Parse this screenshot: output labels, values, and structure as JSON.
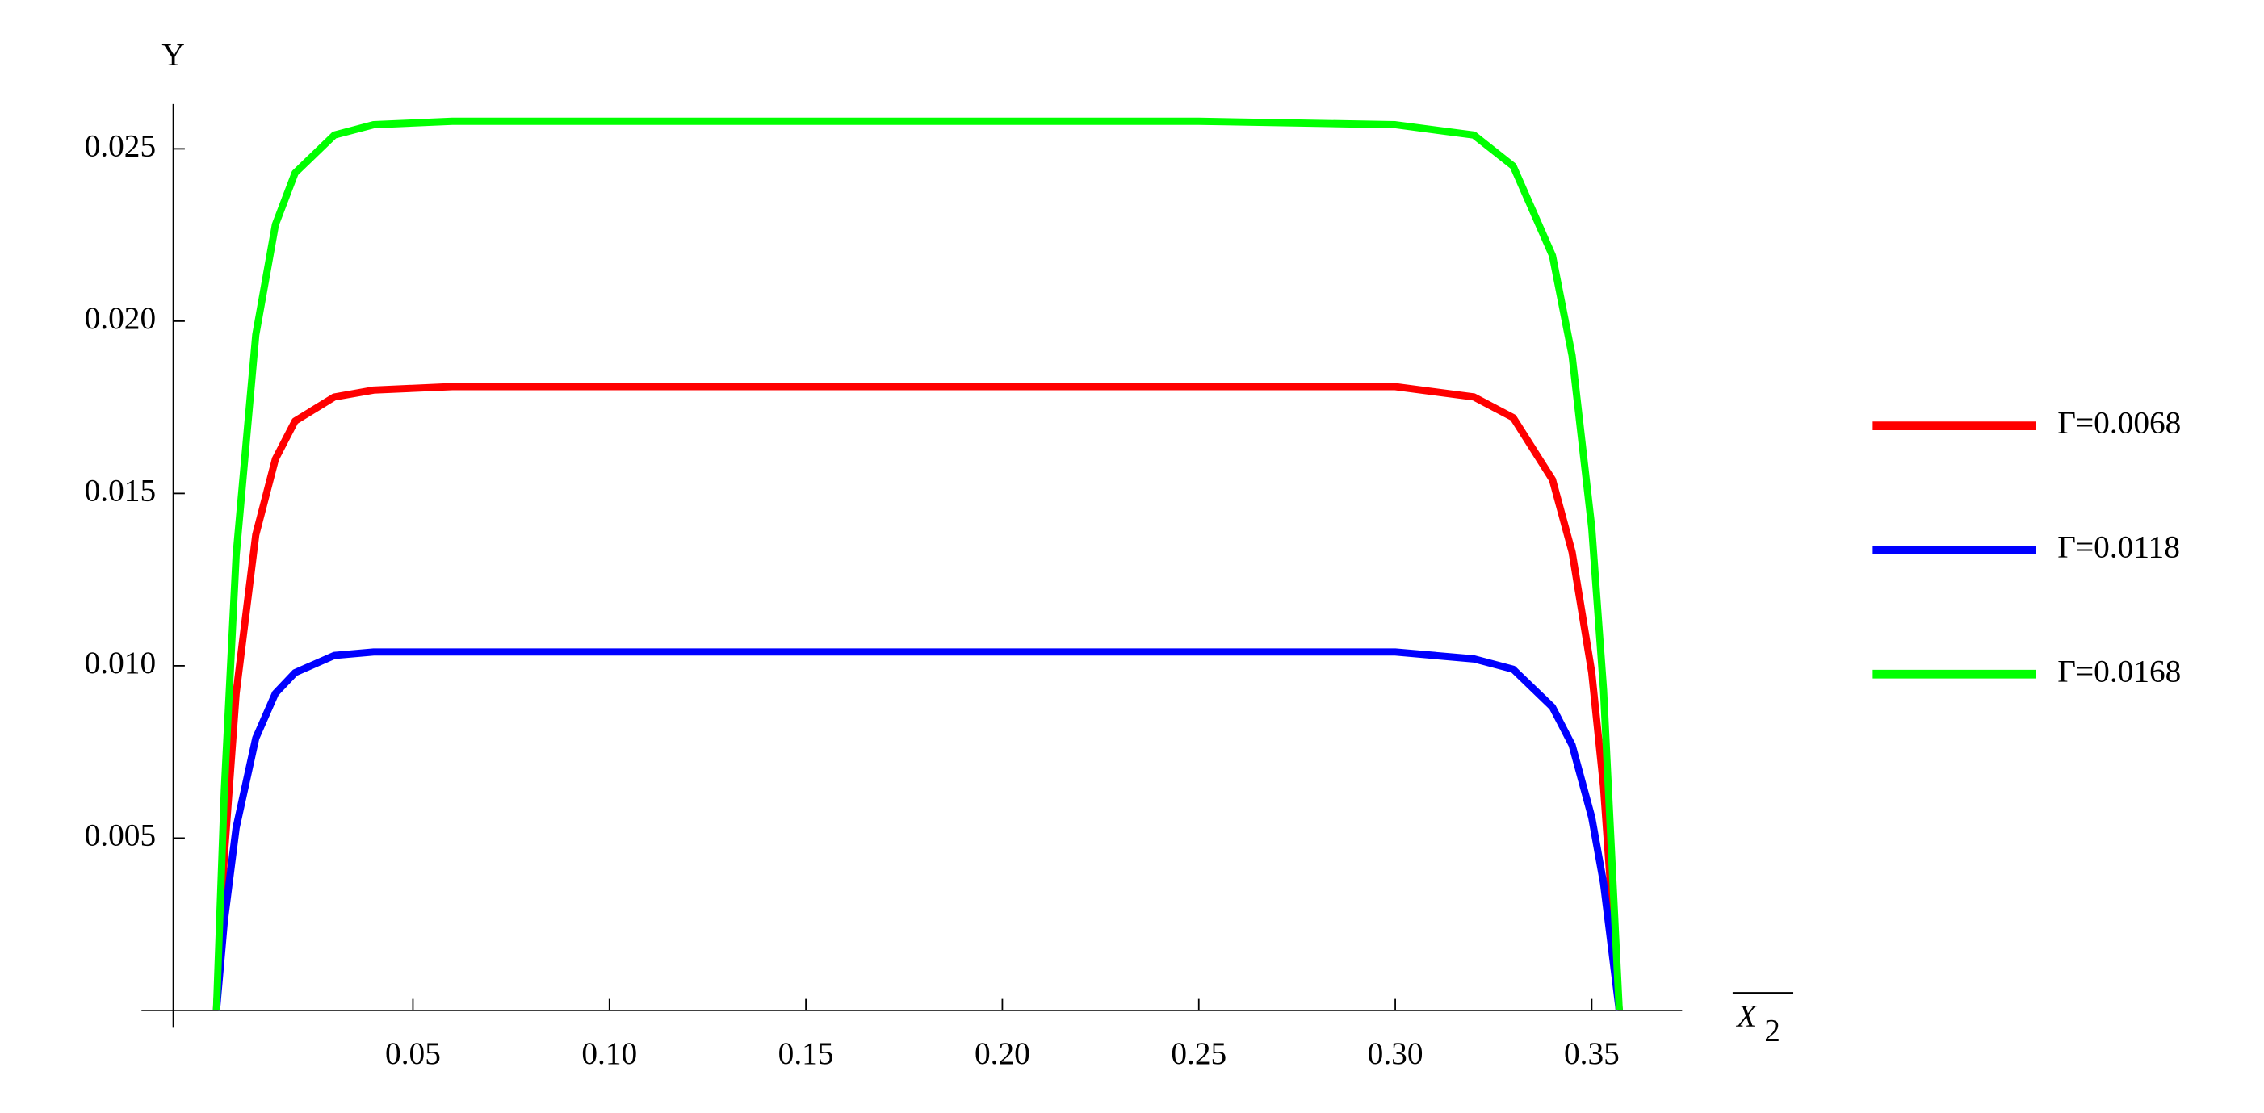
{
  "chart_data": {
    "type": "line",
    "ylabel": "Υ",
    "xlabel": "X",
    "xlabel_subscript": "2",
    "x": [
      0,
      0.002,
      0.005,
      0.01,
      0.015,
      0.02,
      0.03,
      0.04,
      0.06,
      0.1,
      0.15,
      0.2,
      0.25,
      0.3,
      0.32,
      0.33,
      0.34,
      0.345,
      0.35,
      0.353,
      0.357
    ],
    "series": [
      {
        "name": "Γ=0.0068",
        "color": "#ff0000",
        "values": [
          0,
          0.0045,
          0.0092,
          0.0138,
          0.016,
          0.0171,
          0.0178,
          0.018,
          0.0181,
          0.0181,
          0.0181,
          0.0181,
          0.0181,
          0.0181,
          0.0178,
          0.0172,
          0.0154,
          0.0133,
          0.0098,
          0.0065,
          0
        ]
      },
      {
        "name": "Γ=0.0118",
        "color": "#0000ff",
        "values": [
          0,
          0.0026,
          0.0053,
          0.0079,
          0.0092,
          0.0098,
          0.0103,
          0.0104,
          0.0104,
          0.0104,
          0.0104,
          0.0104,
          0.0104,
          0.0104,
          0.0102,
          0.0099,
          0.0088,
          0.0077,
          0.0056,
          0.0037,
          0
        ]
      },
      {
        "name": "Γ=0.0168",
        "color": "#00ff00",
        "values": [
          0,
          0.0064,
          0.0132,
          0.0196,
          0.0228,
          0.0243,
          0.0254,
          0.0257,
          0.0258,
          0.0258,
          0.0258,
          0.0258,
          0.0258,
          0.0257,
          0.0254,
          0.0245,
          0.0219,
          0.019,
          0.014,
          0.0093,
          0
        ]
      }
    ],
    "xlim": [
      -0.011,
      0.373
    ],
    "ylim": [
      0,
      0.0263
    ],
    "xticks": [
      0.05,
      {
        "value": 0.1,
        "label": "0.10"
      },
      0.15,
      {
        "value": 0.2,
        "label": "0.20"
      },
      0.25,
      {
        "value": 0.3,
        "label": "0.30"
      },
      0.35
    ],
    "yticks": [
      0.005,
      {
        "value": 0.01,
        "label": "0.010"
      },
      0.015,
      {
        "value": 0.02,
        "label": "0.020"
      },
      0.025
    ],
    "legend": "right"
  }
}
